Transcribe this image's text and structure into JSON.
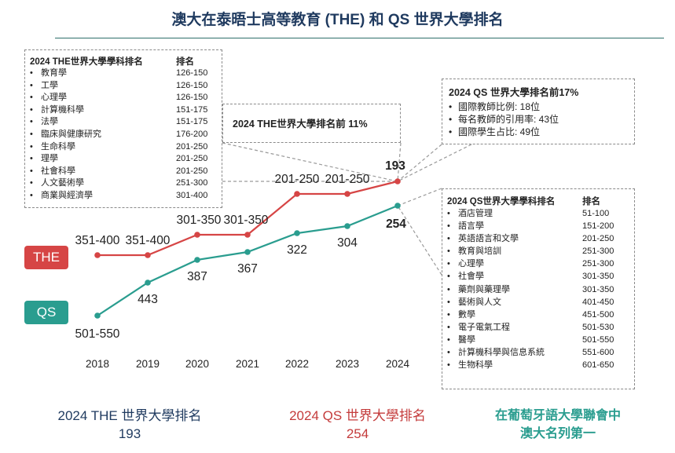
{
  "title": "澳大在泰晤士高等教育 (THE) 和 QS 世界大學排名",
  "chart_data": {
    "type": "line",
    "categories": [
      "2018",
      "2019",
      "2020",
      "2021",
      "2022",
      "2023",
      "2024"
    ],
    "series": [
      {
        "name": "THE",
        "color": "#d64545",
        "values": [
          375.5,
          375.5,
          325.5,
          325.5,
          225.5,
          225.5,
          193
        ],
        "labels": [
          "351-400",
          "351-400",
          "301-350",
          "301-350",
          "201-250",
          "201-250",
          "193"
        ]
      },
      {
        "name": "QS",
        "color": "#2a9d8f",
        "values": [
          525.5,
          443,
          387,
          367,
          322,
          304,
          254
        ],
        "labels": [
          "501-550",
          "443",
          "387",
          "367",
          "322",
          "304",
          "254"
        ]
      }
    ],
    "y_axis_inverted": true
  },
  "series_tags": {
    "the": "THE",
    "qs": "QS"
  },
  "the_subject_box": {
    "header_name": "2024 THE世界大學學科排名",
    "header_rank": "排名",
    "bullet": "•",
    "items": [
      {
        "name": "教育學",
        "rank": "126-150"
      },
      {
        "name": "工學",
        "rank": "126-150"
      },
      {
        "name": "心理學",
        "rank": "126-150"
      },
      {
        "name": "計算機科學",
        "rank": "151-175"
      },
      {
        "name": "法學",
        "rank": "151-175"
      },
      {
        "name": "臨床與健康研究",
        "rank": "176-200"
      },
      {
        "name": "生命科學",
        "rank": "201-250"
      },
      {
        "name": "理學",
        "rank": "201-250"
      },
      {
        "name": "社會科學",
        "rank": "201-250"
      },
      {
        "name": "人文藝術學",
        "rank": "251-300"
      },
      {
        "name": "商業與經濟學",
        "rank": "301-400"
      }
    ]
  },
  "the_callout": "2024 THE世界大學排名前 11%",
  "qs_callout": {
    "header": "2024 QS 世界大學排名前17%",
    "bullet": "•",
    "items": [
      "國際教師比例: 18位",
      "每名教師的引用率: 43位",
      "國際學生占比: 49位"
    ]
  },
  "qs_subject_box": {
    "header_name": "2024 QS世界大學學科排名",
    "header_rank": "排名",
    "bullet": "•",
    "items": [
      {
        "name": "酒店管理",
        "rank": "51-100"
      },
      {
        "name": "語言學",
        "rank": "151-200"
      },
      {
        "name": "英語語言和文學",
        "rank": "201-250"
      },
      {
        "name": "教育與培訓",
        "rank": "251-300"
      },
      {
        "name": "心理學",
        "rank": "251-300"
      },
      {
        "name": "社會學",
        "rank": "301-350"
      },
      {
        "name": "藥劑與藥理學",
        "rank": "301-350"
      },
      {
        "name": "藝術與人文",
        "rank": "401-450"
      },
      {
        "name": "數學",
        "rank": "451-500"
      },
      {
        "name": "電子電氣工程",
        "rank": "501-530"
      },
      {
        "name": "醫學",
        "rank": "501-550"
      },
      {
        "name": "計算機科學與信息系統",
        "rank": "551-600"
      },
      {
        "name": "生物科學",
        "rank": "601-650"
      }
    ]
  },
  "footer": {
    "the_line1": "2024 THE 世界大學排名",
    "the_line2": "193",
    "qs_line1": "2024 QS 世界大學排名",
    "qs_line2": "254",
    "lusophone_line1": "在葡萄牙語大學聯會中",
    "lusophone_line2": "澳大名列第一"
  }
}
